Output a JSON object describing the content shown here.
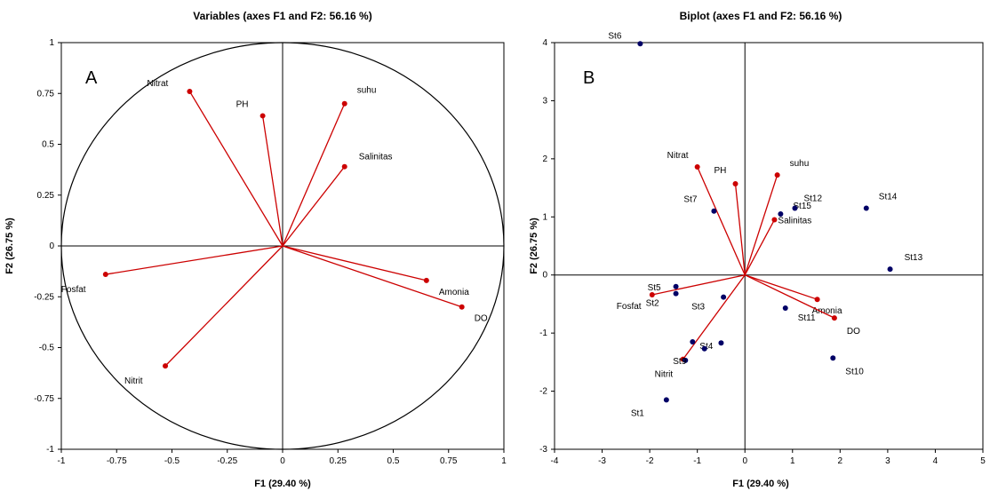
{
  "chart_data": [
    {
      "type": "scatter",
      "panel_letter": "A",
      "title": "Variables (axes F1 and F2: 56.16 %)",
      "xlabel": "F1 (29.40 %)",
      "ylabel": "F2 (26.75 %)",
      "xlim": [
        -1,
        1
      ],
      "ylim": [
        -1,
        1
      ],
      "xticks": [
        "-1",
        "-0.75",
        "-0.5",
        "-0.25",
        "0",
        "0.25",
        "0.5",
        "0.75",
        "1"
      ],
      "yticks": [
        "-1",
        "-0.75",
        "-0.5",
        "-0.25",
        "0",
        "0.25",
        "0.5",
        "0.75",
        "1"
      ],
      "correlation_circle": true,
      "vector_color": "#cc0000",
      "vectors": [
        {
          "label": "Nitrat",
          "x": -0.42,
          "y": 0.76
        },
        {
          "label": "PH",
          "x": -0.09,
          "y": 0.64
        },
        {
          "label": "suhu",
          "x": 0.28,
          "y": 0.7
        },
        {
          "label": "Salinitas",
          "x": 0.28,
          "y": 0.39
        },
        {
          "label": "Fosfat",
          "x": -0.8,
          "y": -0.14
        },
        {
          "label": "Amonia",
          "x": 0.65,
          "y": -0.17
        },
        {
          "label": "DO",
          "x": 0.81,
          "y": -0.3
        },
        {
          "label": "Nitrit",
          "x": -0.53,
          "y": -0.59
        }
      ]
    },
    {
      "type": "scatter",
      "panel_letter": "B",
      "title": "Biplot (axes F1 and F2: 56.16 %)",
      "xlabel": "F1 (29.40 %)",
      "ylabel": "F2 (26.75 %)",
      "xlim": [
        -4,
        5
      ],
      "ylim": [
        -3,
        4
      ],
      "xticks": [
        "-4",
        "-3",
        "-2",
        "-1",
        "0",
        "1",
        "2",
        "3",
        "4",
        "5"
      ],
      "yticks": [
        "-3",
        "-2",
        "-1",
        "0",
        "1",
        "2",
        "3",
        "4"
      ],
      "point_color": "#000066",
      "vector_color": "#cc0000",
      "points": [
        {
          "label": "St6",
          "x": -2.2,
          "y": 3.98
        },
        {
          "label": "St7",
          "x": -0.65,
          "y": 1.1
        },
        {
          "label": "St15",
          "x": 0.75,
          "y": 1.05
        },
        {
          "label": "St12",
          "x": 1.05,
          "y": 1.15
        },
        {
          "label": "St14",
          "x": 2.55,
          "y": 1.15
        },
        {
          "label": "St13",
          "x": 3.05,
          "y": 0.1
        },
        {
          "label": "St5",
          "x": -1.45,
          "y": -0.2
        },
        {
          "label": "St2",
          "x": -1.45,
          "y": -0.32
        },
        {
          "label": "St3",
          "x": -0.45,
          "y": -0.38
        },
        {
          "label": "St11",
          "x": 0.85,
          "y": -0.57
        },
        {
          "label": "St4",
          "x": -1.1,
          "y": -1.15
        },
        {
          "label": "",
          "x": -0.5,
          "y": -1.17
        },
        {
          "label": "",
          "x": -0.85,
          "y": -1.27
        },
        {
          "label": "St9",
          "x": -1.25,
          "y": -1.47
        },
        {
          "label": "St10",
          "x": 1.85,
          "y": -1.43
        },
        {
          "label": "St1",
          "x": -1.65,
          "y": -2.15
        }
      ],
      "vectors": [
        {
          "label": "Nitrat",
          "x": -1.0,
          "y": 1.86
        },
        {
          "label": "PH",
          "x": -0.2,
          "y": 1.57
        },
        {
          "label": "suhu",
          "x": 0.68,
          "y": 1.72
        },
        {
          "label": "Salinitas",
          "x": 0.62,
          "y": 0.95
        },
        {
          "label": "Fosfat",
          "x": -1.95,
          "y": -0.34
        },
        {
          "label": "Amonia",
          "x": 1.52,
          "y": -0.42
        },
        {
          "label": "DO",
          "x": 1.88,
          "y": -0.74
        },
        {
          "label": "Nitrit",
          "x": -1.3,
          "y": -1.45
        }
      ]
    }
  ]
}
